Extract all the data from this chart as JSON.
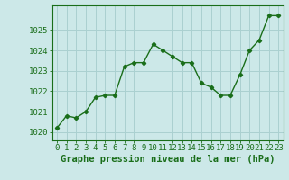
{
  "x": [
    0,
    1,
    2,
    3,
    4,
    5,
    6,
    7,
    8,
    9,
    10,
    11,
    12,
    13,
    14,
    15,
    16,
    17,
    18,
    19,
    20,
    21,
    22,
    23
  ],
  "y": [
    1020.2,
    1020.8,
    1020.7,
    1021.0,
    1021.7,
    1021.8,
    1021.8,
    1023.2,
    1023.4,
    1023.4,
    1024.3,
    1024.0,
    1023.7,
    1023.4,
    1023.4,
    1022.4,
    1022.2,
    1021.8,
    1021.8,
    1022.8,
    1024.0,
    1024.5,
    1025.7,
    1025.7
  ],
  "ylim": [
    1019.6,
    1026.2
  ],
  "xlim": [
    -0.5,
    23.5
  ],
  "yticks": [
    1020,
    1021,
    1022,
    1023,
    1024,
    1025
  ],
  "xticks": [
    0,
    1,
    2,
    3,
    4,
    5,
    6,
    7,
    8,
    9,
    10,
    11,
    12,
    13,
    14,
    15,
    16,
    17,
    18,
    19,
    20,
    21,
    22,
    23
  ],
  "xlabel": "Graphe pression niveau de la mer (hPa)",
  "line_color": "#1a6e1a",
  "marker": "D",
  "marker_size": 2.2,
  "line_width": 1.0,
  "bg_color": "#cce8e8",
  "grid_color": "#aad0d0",
  "tick_color": "#1a6e1a",
  "label_color": "#1a6e1a",
  "xlabel_fontsize": 7.5,
  "tick_fontsize": 6.5
}
